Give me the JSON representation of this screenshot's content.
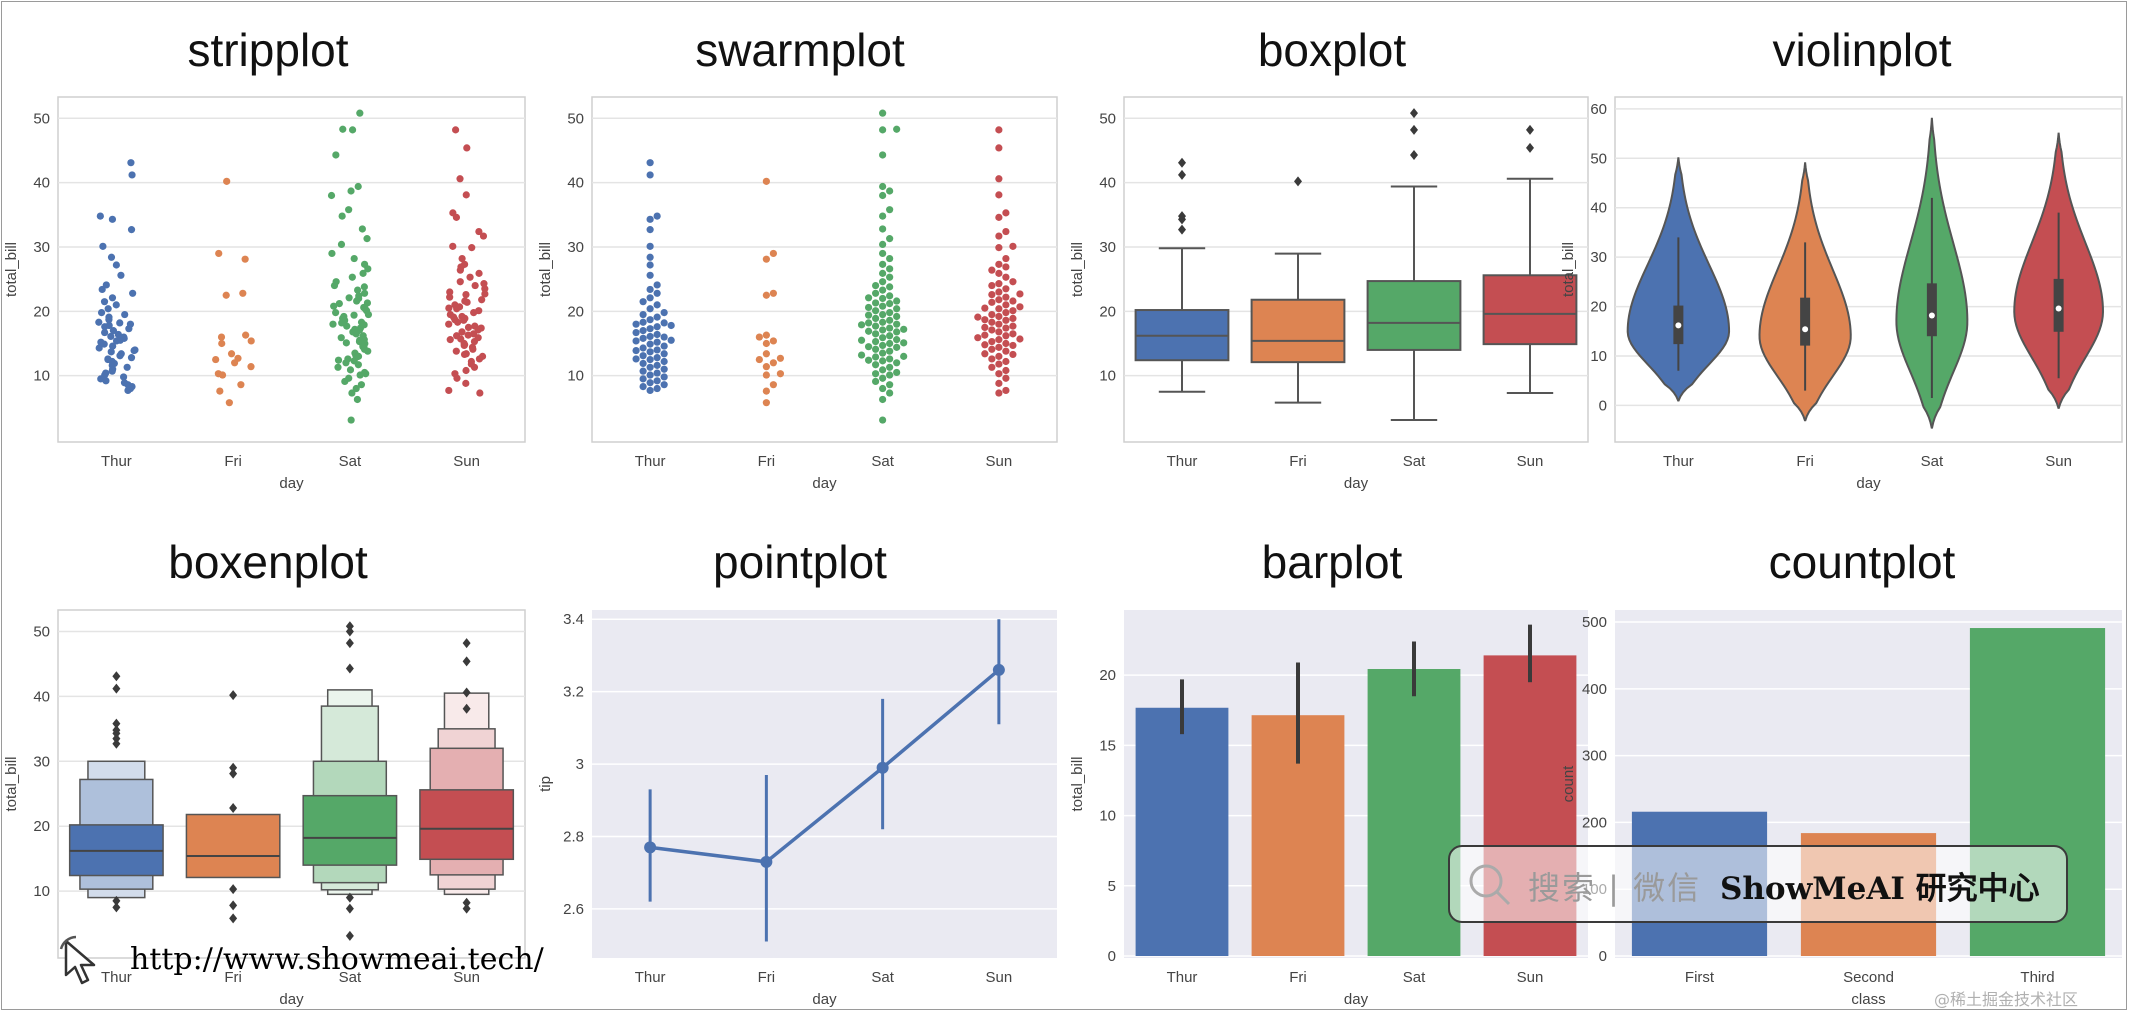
{
  "colors": {
    "blue": "#4c72b0",
    "orange": "#dd8452",
    "green": "#55a868",
    "red": "#c44e52",
    "darkgray": "#4a4a4a",
    "grid": "#e4e4e4",
    "darkbg": "#eaeaf2"
  },
  "watermark": {
    "search_text": "搜索 | 微信",
    "brand": "ShowMeAI 研究中心",
    "url": "http://www.showmeai.tech/",
    "credit": "@稀土掘金技术社区"
  },
  "chart_data": [
    {
      "type": "stripplot",
      "title": "stripplot",
      "xlabel": "day",
      "ylabel": "total_bill",
      "categories": [
        "Thur",
        "Fri",
        "Sat",
        "Sun"
      ],
      "yticks": [
        10,
        20,
        30,
        40,
        50
      ],
      "ylim": [
        0,
        53
      ],
      "points": [
        [
          43.1,
          41.2,
          34.8,
          34.3,
          32.7,
          30.1,
          28.4,
          27.2,
          25.6,
          24.1,
          23.4,
          22.8,
          22.1,
          21.5,
          21.0,
          20.4,
          19.8,
          19.5,
          19.1,
          18.7,
          18.3,
          18.0,
          17.6,
          17.3,
          17.0,
          16.7,
          16.4,
          16.1,
          15.8,
          15.5,
          15.2,
          14.9,
          14.6,
          14.3,
          14.0,
          13.7,
          13.4,
          13.1,
          12.8,
          12.5,
          12.2,
          11.9,
          11.6,
          11.3,
          11.0,
          10.7,
          10.4,
          10.1,
          9.8,
          9.5,
          9.2,
          8.9,
          8.6,
          8.3,
          8.0,
          7.7,
          16.0,
          18.2,
          15.4,
          13.9,
          12.6,
          17.8
        ],
        [
          40.2,
          29.0,
          28.1,
          22.8,
          22.5,
          16.3,
          16.0,
          15.4,
          13.4,
          12.5,
          12.0,
          10.3,
          8.6,
          5.8,
          15.0,
          12.7,
          11.4,
          7.6,
          10.1
        ],
        [
          50.8,
          48.3,
          48.2,
          44.3,
          39.4,
          38.7,
          38.0,
          35.8,
          34.8,
          32.8,
          31.3,
          30.4,
          29.0,
          28.2,
          27.3,
          26.6,
          25.9,
          25.3,
          24.6,
          24.0,
          23.3,
          22.8,
          22.4,
          22.0,
          21.6,
          21.2,
          20.8,
          20.4,
          20.1,
          19.8,
          19.5,
          19.2,
          18.9,
          18.6,
          18.3,
          18.0,
          17.7,
          17.4,
          17.1,
          16.8,
          16.5,
          16.2,
          15.9,
          15.6,
          15.3,
          15.0,
          14.7,
          14.4,
          14.1,
          13.8,
          13.5,
          13.2,
          12.9,
          12.6,
          12.3,
          12.0,
          11.7,
          11.3,
          10.9,
          10.5,
          10.1,
          9.6,
          9.1,
          8.6,
          8.0,
          7.3,
          6.3,
          3.1,
          17.9,
          20.6,
          22.1,
          15.5,
          13.0,
          10.3,
          19.4,
          16.9,
          18.2,
          14.5,
          12.4,
          21.3,
          23.8,
          17.2,
          15.1
        ],
        [
          48.2,
          45.4,
          40.6,
          38.1,
          35.3,
          34.6,
          32.4,
          31.7,
          30.1,
          29.9,
          28.2,
          27.3,
          26.4,
          25.9,
          25.3,
          24.6,
          24.0,
          23.5,
          23.0,
          22.6,
          22.2,
          21.8,
          21.4,
          21.0,
          20.7,
          20.4,
          20.1,
          19.8,
          19.5,
          19.2,
          18.9,
          18.6,
          18.3,
          18.0,
          17.7,
          17.4,
          17.1,
          16.8,
          16.5,
          16.2,
          15.9,
          15.6,
          15.3,
          15.0,
          14.7,
          14.4,
          14.1,
          13.8,
          13.4,
          13.0,
          12.6,
          12.2,
          11.8,
          11.3,
          10.8,
          10.3,
          9.6,
          8.8,
          7.7,
          7.3,
          20.5,
          17.5,
          24.3,
          16.3,
          18.7,
          22.7,
          13.3,
          26.9,
          15.7,
          19.1,
          21.6,
          14.8
        ]
      ]
    },
    {
      "type": "swarmplot",
      "title": "swarmplot",
      "xlabel": "day",
      "ylabel": "total_bill",
      "categories": [
        "Thur",
        "Fri",
        "Sat",
        "Sun"
      ],
      "yticks": [
        10,
        20,
        30,
        40,
        50
      ],
      "ylim": [
        0,
        53
      ]
    },
    {
      "type": "boxplot",
      "title": "boxplot",
      "xlabel": "day",
      "ylabel": "total_bill",
      "categories": [
        "Thur",
        "Fri",
        "Sat",
        "Sun"
      ],
      "yticks": [
        10,
        20,
        30,
        40,
        50
      ],
      "ylim": [
        0,
        53
      ],
      "boxes": [
        {
          "whislo": 7.5,
          "q1": 12.4,
          "median": 16.2,
          "q3": 20.2,
          "whishi": 29.8,
          "fliers": [
            32.7,
            34.3,
            34.8,
            41.2,
            43.1
          ]
        },
        {
          "whislo": 5.8,
          "q1": 12.1,
          "median": 15.4,
          "q3": 21.8,
          "whishi": 28.97,
          "fliers": [
            40.2
          ]
        },
        {
          "whislo": 3.1,
          "q1": 14.0,
          "median": 18.2,
          "q3": 24.7,
          "whishi": 39.4,
          "fliers": [
            44.3,
            48.2,
            50.8
          ]
        },
        {
          "whislo": 7.3,
          "q1": 14.9,
          "median": 19.6,
          "q3": 25.6,
          "whishi": 40.6,
          "fliers": [
            45.4,
            48.2
          ]
        }
      ]
    },
    {
      "type": "violinplot",
      "title": "violinplot",
      "xlabel": "day",
      "ylabel": "total_bill",
      "categories": [
        "Thur",
        "Fri",
        "Sat",
        "Sun"
      ],
      "yticks": [
        0,
        10,
        20,
        30,
        40,
        50,
        60
      ],
      "ylim": [
        -7,
        62
      ],
      "violins": [
        {
          "min": 1,
          "max": 50,
          "mode": 15,
          "width": 0.4,
          "q1": 12.4,
          "median": 16.2,
          "q3": 20.2
        },
        {
          "min": -3,
          "max": 49,
          "mode": 14,
          "width": 0.36,
          "q1": 12.1,
          "median": 15.4,
          "q3": 21.8
        },
        {
          "min": -4.5,
          "max": 58,
          "mode": 17,
          "width": 0.28,
          "q1": 14.0,
          "median": 18.2,
          "q3": 24.7
        },
        {
          "min": -0.5,
          "max": 55,
          "mode": 19,
          "width": 0.35,
          "q1": 14.9,
          "median": 19.6,
          "q3": 25.6
        }
      ]
    },
    {
      "type": "boxenplot",
      "title": "boxenplot",
      "xlabel": "day",
      "ylabel": "total_bill",
      "categories": [
        "Thur",
        "Fri",
        "Sat",
        "Sun"
      ],
      "yticks": [
        10,
        20,
        30,
        40,
        50
      ],
      "ylim": [
        0,
        53
      ],
      "levels": [
        {
          "median": 16.2,
          "boxes": [
            [
              12.4,
              20.2
            ],
            [
              10.3,
              27.2
            ],
            [
              9.0,
              30.0
            ]
          ],
          "fliers": [
            7.5,
            8.5,
            32.7,
            33.5,
            34.3,
            34.8,
            35.8,
            41.2,
            43.1
          ]
        },
        {
          "median": 15.4,
          "boxes": [
            [
              12.1,
              21.8
            ]
          ],
          "fliers": [
            5.8,
            7.8,
            10.3,
            22.8,
            28.1,
            29.0,
            40.2
          ]
        },
        {
          "median": 18.2,
          "boxes": [
            [
              14.0,
              24.7
            ],
            [
              11.3,
              30.0
            ],
            [
              10.2,
              38.5
            ],
            [
              9.5,
              41.0
            ]
          ],
          "fliers": [
            3.1,
            7.3,
            9.0,
            48.2,
            50.0,
            50.8,
            44.3
          ]
        },
        {
          "median": 19.6,
          "boxes": [
            [
              14.9,
              25.6
            ],
            [
              12.5,
              32.0
            ],
            [
              10.3,
              35.0
            ],
            [
              9.5,
              40.5
            ]
          ],
          "fliers": [
            7.3,
            8.2,
            38.1,
            40.6,
            45.4,
            48.2
          ]
        }
      ]
    },
    {
      "type": "pointplot",
      "title": "pointplot",
      "xlabel": "day",
      "ylabel": "tip",
      "categories": [
        "Thur",
        "Fri",
        "Sat",
        "Sun"
      ],
      "yticks": [
        2.6,
        2.8,
        3.0,
        3.2,
        3.4
      ],
      "ylim": [
        2.47,
        3.42
      ],
      "values": [
        2.77,
        2.73,
        2.99,
        3.26
      ],
      "ci": [
        [
          2.62,
          2.93
        ],
        [
          2.51,
          2.97
        ],
        [
          2.82,
          3.18
        ],
        [
          3.11,
          3.4
        ]
      ]
    },
    {
      "type": "barplot",
      "title": "barplot",
      "xlabel": "day",
      "ylabel": "total_bill",
      "categories": [
        "Thur",
        "Fri",
        "Sat",
        "Sun"
      ],
      "yticks": [
        0,
        5,
        10,
        15,
        20
      ],
      "ylim": [
        0,
        24.5
      ],
      "values": [
        17.68,
        17.15,
        20.44,
        21.41
      ],
      "ci": [
        [
          15.8,
          19.7
        ],
        [
          13.7,
          20.9
        ],
        [
          18.5,
          22.4
        ],
        [
          19.5,
          23.6
        ]
      ]
    },
    {
      "type": "countplot",
      "title": "countplot",
      "xlabel": "class",
      "ylabel": "count",
      "categories": [
        "First",
        "Second",
        "Third"
      ],
      "yticks": [
        0,
        100,
        200,
        300,
        400,
        500
      ],
      "ylim": [
        0,
        515
      ],
      "values": [
        216,
        184,
        491
      ]
    }
  ]
}
